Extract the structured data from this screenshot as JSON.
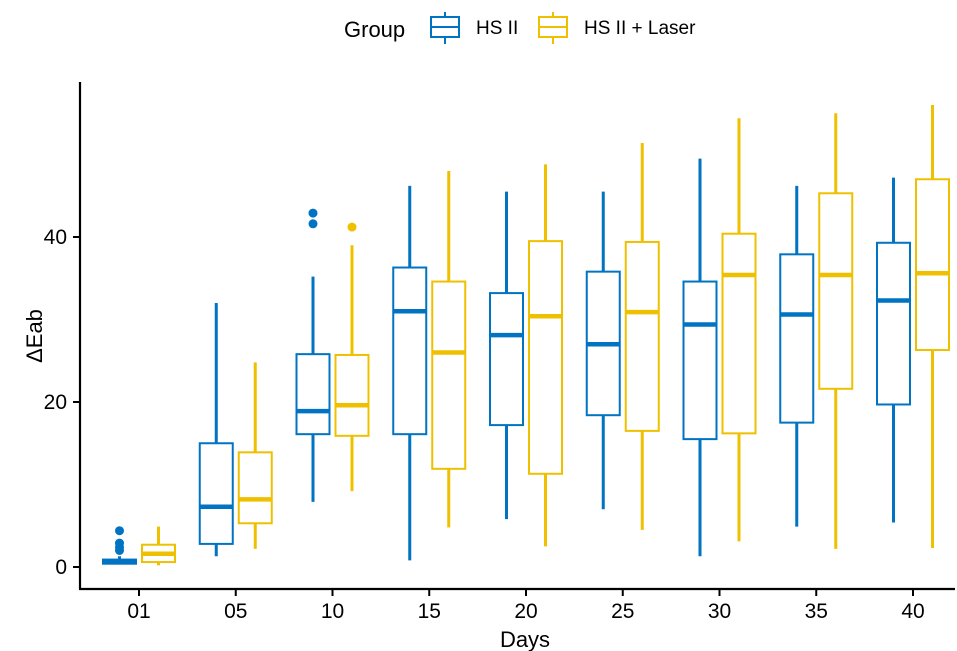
{
  "chart_data": {
    "type": "box",
    "title": "",
    "xlabel": "Days",
    "ylabel": "ΔEab",
    "categories": [
      "01",
      "05",
      "10",
      "15",
      "20",
      "25",
      "30",
      "35",
      "40"
    ],
    "ylim": [
      -3,
      59
    ],
    "yticks": [
      0,
      20,
      40
    ],
    "grid": false,
    "legend": {
      "title": "Group",
      "position": "top"
    },
    "series": [
      {
        "name": "HS II",
        "color": "#0073C2",
        "boxes": [
          {
            "min": 0.3,
            "q1": 0.4,
            "median": 0.7,
            "q3": 0.9,
            "max": 1.3,
            "outliers": [
              2.0,
              2.4,
              2.9,
              4.4
            ]
          },
          {
            "min": 1.3,
            "q1": 2.8,
            "median": 7.3,
            "q3": 15.0,
            "max": 32.0,
            "outliers": []
          },
          {
            "min": 7.9,
            "q1": 16.1,
            "median": 18.9,
            "q3": 25.8,
            "max": 35.2,
            "outliers": [
              41.6,
              42.9
            ]
          },
          {
            "min": 0.8,
            "q1": 16.1,
            "median": 31.0,
            "q3": 36.3,
            "max": 46.2,
            "outliers": []
          },
          {
            "min": 5.8,
            "q1": 17.2,
            "median": 28.1,
            "q3": 33.2,
            "max": 45.5,
            "outliers": []
          },
          {
            "min": 7.0,
            "q1": 18.4,
            "median": 27.0,
            "q3": 35.8,
            "max": 45.5,
            "outliers": []
          },
          {
            "min": 1.3,
            "q1": 15.5,
            "median": 29.4,
            "q3": 34.6,
            "max": 49.5,
            "outliers": []
          },
          {
            "min": 4.9,
            "q1": 17.5,
            "median": 30.6,
            "q3": 37.9,
            "max": 46.2,
            "outliers": []
          },
          {
            "min": 5.4,
            "q1": 19.7,
            "median": 32.3,
            "q3": 39.3,
            "max": 47.2,
            "outliers": []
          }
        ]
      },
      {
        "name": "HS II + Laser",
        "color": "#EFC000",
        "boxes": [
          {
            "min": 0.2,
            "q1": 0.6,
            "median": 1.6,
            "q3": 2.7,
            "max": 4.9,
            "outliers": []
          },
          {
            "min": 2.2,
            "q1": 5.3,
            "median": 8.2,
            "q3": 13.9,
            "max": 24.8,
            "outliers": []
          },
          {
            "min": 9.2,
            "q1": 15.9,
            "median": 19.6,
            "q3": 25.7,
            "max": 39.0,
            "outliers": [
              41.2
            ]
          },
          {
            "min": 4.8,
            "q1": 11.9,
            "median": 26.0,
            "q3": 34.6,
            "max": 48.0,
            "outliers": []
          },
          {
            "min": 2.5,
            "q1": 11.3,
            "median": 30.4,
            "q3": 39.5,
            "max": 48.8,
            "outliers": []
          },
          {
            "min": 4.5,
            "q1": 16.5,
            "median": 30.9,
            "q3": 39.4,
            "max": 51.4,
            "outliers": []
          },
          {
            "min": 3.1,
            "q1": 16.2,
            "median": 35.4,
            "q3": 40.4,
            "max": 54.4,
            "outliers": []
          },
          {
            "min": 2.2,
            "q1": 21.6,
            "median": 35.4,
            "q3": 45.3,
            "max": 55.0,
            "outliers": []
          },
          {
            "min": 2.3,
            "q1": 26.3,
            "median": 35.6,
            "q3": 47.0,
            "max": 56.0,
            "outliers": []
          }
        ]
      }
    ]
  }
}
